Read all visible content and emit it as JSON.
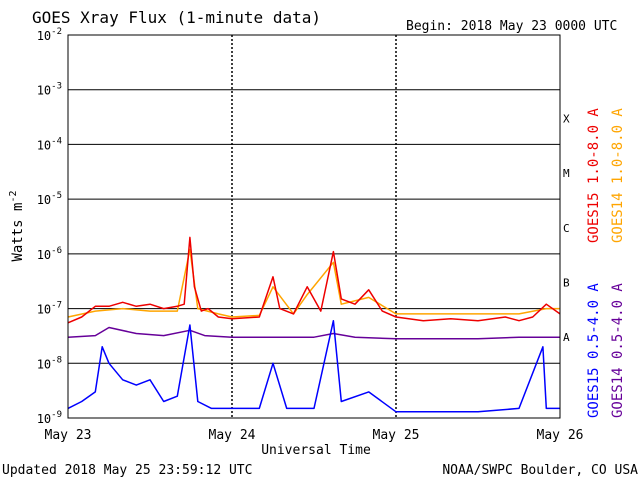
{
  "header": {
    "title": "GOES Xray Flux (1-minute data)",
    "begin": "Begin:  2018 May 23 0000 UTC"
  },
  "footer": {
    "updated": "Updated 2018 May 25 23:59:12 UTC",
    "credit": "NOAA/SWPC Boulder, CO USA"
  },
  "colors": {
    "goes15_long": "#ee0000",
    "goes14_long": "#ffa500",
    "goes15_short": "#0000ff",
    "goes14_short": "#660099"
  },
  "chart_data": {
    "type": "line",
    "title": "GOES Xray Flux (1-minute data)",
    "xlabel": "Universal Time",
    "ylabel": "Watts m-2",
    "y_scale": "log",
    "ylim": [
      1e-09,
      0.01
    ],
    "xlim": [
      "2018-05-23T00:00",
      "2018-05-26T00:00"
    ],
    "grid": true,
    "x_ticks": [
      "May 23",
      "May 24",
      "May 25",
      "May 26"
    ],
    "y_ticks": [
      {
        "value": 0.01,
        "base": "10",
        "exp": "-2"
      },
      {
        "value": 0.001,
        "base": "10",
        "exp": "-3"
      },
      {
        "value": 0.0001,
        "base": "10",
        "exp": "-4"
      },
      {
        "value": 1e-05,
        "base": "10",
        "exp": "-5"
      },
      {
        "value": 1e-06,
        "base": "10",
        "exp": "-6"
      },
      {
        "value": 1e-07,
        "base": "10",
        "exp": "-7"
      },
      {
        "value": 1e-08,
        "base": "10",
        "exp": "-8"
      },
      {
        "value": 1e-09,
        "base": "10",
        "exp": "-9"
      }
    ],
    "flare_classes": [
      {
        "label": "X",
        "value": 0.0003
      },
      {
        "label": "M",
        "value": 3e-05
      },
      {
        "label": "C",
        "value": 3e-06
      },
      {
        "label": "B",
        "value": 3e-07
      },
      {
        "label": "A",
        "value": 3e-08
      }
    ],
    "legend_placement": "right",
    "series": [
      {
        "name": "GOES15 1.0-8.0 A",
        "color": "#ee0000",
        "x": [
          "2018-05-23T00:00",
          "2018-05-23T02:00",
          "2018-05-23T04:00",
          "2018-05-23T06:00",
          "2018-05-23T08:00",
          "2018-05-23T10:00",
          "2018-05-23T12:00",
          "2018-05-23T14:00",
          "2018-05-23T16:00",
          "2018-05-23T17:00",
          "2018-05-23T17:50",
          "2018-05-23T18:30",
          "2018-05-23T19:30",
          "2018-05-23T20:30",
          "2018-05-23T22:00",
          "2018-05-24T00:00",
          "2018-05-24T04:00",
          "2018-05-24T06:00",
          "2018-05-24T07:00",
          "2018-05-24T09:00",
          "2018-05-24T11:00",
          "2018-05-24T13:00",
          "2018-05-24T14:50",
          "2018-05-24T16:00",
          "2018-05-24T18:00",
          "2018-05-24T20:00",
          "2018-05-24T22:00",
          "2018-05-25T00:00",
          "2018-05-25T04:00",
          "2018-05-25T08:00",
          "2018-05-25T12:00",
          "2018-05-25T16:00",
          "2018-05-25T18:00",
          "2018-05-25T20:00",
          "2018-05-25T22:00",
          "2018-05-26T00:00"
        ],
        "values": [
          5.5e-08,
          7e-08,
          1.1e-07,
          1.1e-07,
          1.3e-07,
          1.1e-07,
          1.2e-07,
          1e-07,
          1.1e-07,
          1.2e-07,
          2e-06,
          2.5e-07,
          9e-08,
          1e-07,
          7e-08,
          6.5e-08,
          7e-08,
          3.8e-07,
          1e-07,
          8e-08,
          2.5e-07,
          9e-08,
          1.1e-06,
          1.5e-07,
          1.2e-07,
          2.2e-07,
          9e-08,
          7e-08,
          6e-08,
          6.5e-08,
          6e-08,
          7e-08,
          6e-08,
          7e-08,
          1.2e-07,
          8e-08
        ]
      },
      {
        "name": "GOES14 1.0-8.0 A",
        "color": "#ffa500",
        "x": [
          "2018-05-23T00:00",
          "2018-05-23T04:00",
          "2018-05-23T08:00",
          "2018-05-23T12:00",
          "2018-05-23T16:00",
          "2018-05-23T17:50",
          "2018-05-23T19:00",
          "2018-05-23T22:00",
          "2018-05-24T00:00",
          "2018-05-24T04:00",
          "2018-05-24T06:00",
          "2018-05-24T09:00",
          "2018-05-24T11:00",
          "2018-05-24T14:50",
          "2018-05-24T16:00",
          "2018-05-24T20:00",
          "2018-05-25T00:00",
          "2018-05-25T06:00",
          "2018-05-25T12:00",
          "2018-05-25T18:00",
          "2018-05-25T22:00",
          "2018-05-26T00:00"
        ],
        "values": [
          7e-08,
          9e-08,
          1e-07,
          9e-08,
          9e-08,
          1.2e-06,
          1e-07,
          8e-08,
          7e-08,
          7.5e-08,
          2.5e-07,
          8e-08,
          1.8e-07,
          7e-07,
          1.2e-07,
          1.6e-07,
          8e-08,
          8e-08,
          8e-08,
          8e-08,
          1e-07,
          1e-07
        ]
      },
      {
        "name": "GOES15 0.5-4.0 A",
        "color": "#0000ff",
        "x": [
          "2018-05-23T00:00",
          "2018-05-23T02:00",
          "2018-05-23T04:00",
          "2018-05-23T05:00",
          "2018-05-23T06:00",
          "2018-05-23T08:00",
          "2018-05-23T10:00",
          "2018-05-23T12:00",
          "2018-05-23T14:00",
          "2018-05-23T16:00",
          "2018-05-23T17:50",
          "2018-05-23T19:00",
          "2018-05-23T21:00",
          "2018-05-24T00:00",
          "2018-05-24T04:00",
          "2018-05-24T06:00",
          "2018-05-24T08:00",
          "2018-05-24T12:00",
          "2018-05-24T14:50",
          "2018-05-24T16:00",
          "2018-05-24T20:00",
          "2018-05-25T00:00",
          "2018-05-25T06:00",
          "2018-05-25T12:00",
          "2018-05-25T18:00",
          "2018-05-25T21:30",
          "2018-05-25T22:00",
          "2018-05-26T00:00"
        ],
        "values": [
          1.5e-09,
          2e-09,
          3e-09,
          2e-08,
          1e-08,
          5e-09,
          4e-09,
          5e-09,
          2e-09,
          2.5e-09,
          5e-08,
          2e-09,
          1.5e-09,
          1.5e-09,
          1.5e-09,
          1e-08,
          1.5e-09,
          1.5e-09,
          6e-08,
          2e-09,
          3e-09,
          1.3e-09,
          1.3e-09,
          1.3e-09,
          1.5e-09,
          2e-08,
          1.5e-09,
          1.5e-09
        ]
      },
      {
        "name": "GOES14 0.5-4.0 A",
        "color": "#660099",
        "x": [
          "2018-05-23T00:00",
          "2018-05-23T04:00",
          "2018-05-23T06:00",
          "2018-05-23T10:00",
          "2018-05-23T14:00",
          "2018-05-23T17:50",
          "2018-05-23T20:00",
          "2018-05-24T00:00",
          "2018-05-24T06:00",
          "2018-05-24T12:00",
          "2018-05-24T14:50",
          "2018-05-24T18:00",
          "2018-05-25T00:00",
          "2018-05-25T06:00",
          "2018-05-25T12:00",
          "2018-05-25T18:00",
          "2018-05-26T00:00"
        ],
        "values": [
          3e-08,
          3.2e-08,
          4.5e-08,
          3.5e-08,
          3.2e-08,
          4e-08,
          3.2e-08,
          3e-08,
          3e-08,
          3e-08,
          3.5e-08,
          3e-08,
          2.8e-08,
          2.8e-08,
          2.8e-08,
          3e-08,
          3e-08
        ]
      }
    ]
  }
}
